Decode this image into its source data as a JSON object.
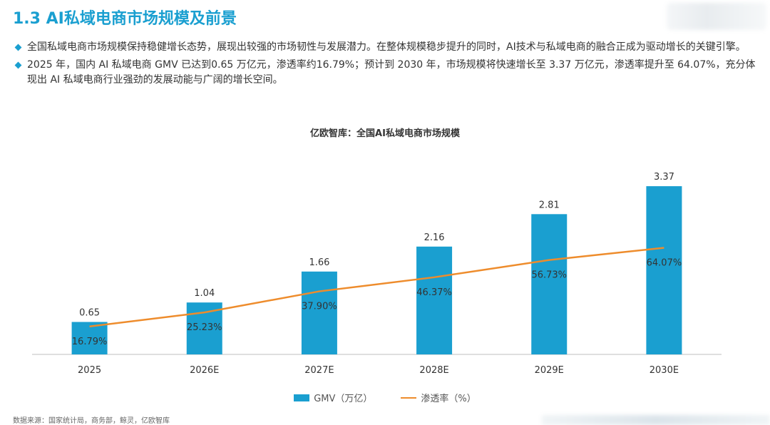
{
  "header": {
    "title": "1.3 AI私域电商市场规模及前景"
  },
  "bullets": [
    "全国私域电商市场规模保持稳健增长态势，展现出较强的市场韧性与发展潜力。在整体规模稳步提升的同时，AI技术与私域电商的融合正成为驱动增长的关键引擎。",
    "2025 年，国内 AI 私域电商 GMV 已达到0.65 万亿元，渗透率约16.79%；预计到 2030 年，市场规模将快速增长至 3.37 万亿元，渗透率提升至 64.07%，充分体现出 AI 私域电商行业强劲的发展动能与广阔的增长空间。"
  ],
  "chart_data": {
    "type": "bar",
    "title": "亿欧智库：全国AI私域电商市场规模",
    "categories": [
      "2025",
      "2026E",
      "2027E",
      "2028E",
      "2029E",
      "2030E"
    ],
    "series": [
      {
        "name": "GMV（万亿）",
        "type": "bar",
        "values": [
          0.65,
          1.04,
          1.66,
          2.16,
          2.81,
          3.37
        ],
        "labels": [
          "0.65",
          "1.04",
          "1.66",
          "2.16",
          "2.81",
          "3.37"
        ],
        "color": "#1a9fd0"
      },
      {
        "name": "渗透率（%）",
        "type": "line",
        "values": [
          16.79,
          25.23,
          37.9,
          46.37,
          56.73,
          64.07
        ],
        "labels": [
          "16.79%",
          "25.23%",
          "37.90%",
          "46.37%",
          "56.73%",
          "64.07%"
        ],
        "color": "#ee8c2c"
      }
    ],
    "bar_ylim": [
      0,
      4
    ],
    "line_ylim": [
      0,
      120
    ],
    "grid": false,
    "legend_position": "bottom"
  },
  "source": "数据来源：国家统计局，商务部，鲸灵，亿欧智库"
}
